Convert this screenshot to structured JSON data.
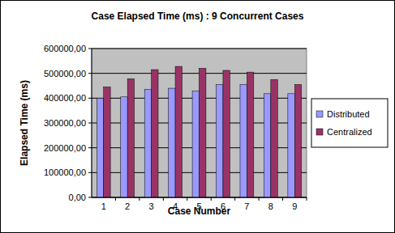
{
  "chart_data": {
    "type": "bar",
    "title": "Case Elapsed Time (ms) : 9 Concurrent Cases",
    "x_label": "Case Number",
    "y_label": "Elapsed Time (ms)",
    "categories": [
      "1",
      "2",
      "3",
      "4",
      "5",
      "6",
      "7",
      "8",
      "9"
    ],
    "series": [
      {
        "name": "Distributed",
        "color": "#9999ff",
        "values": [
          400000,
          405000,
          435000,
          440000,
          428000,
          455000,
          455000,
          418000,
          418000
        ]
      },
      {
        "name": "Centralized",
        "color": "#993366",
        "values": [
          445000,
          478000,
          515000,
          528000,
          520000,
          512000,
          505000,
          475000,
          455000
        ]
      }
    ],
    "ylim": [
      0,
      600000
    ],
    "yticks": [
      {
        "value": 0,
        "label": "0,00"
      },
      {
        "value": 100000,
        "label": "100000,00"
      },
      {
        "value": 200000,
        "label": "200000,00"
      },
      {
        "value": 300000,
        "label": "300000,00"
      },
      {
        "value": 400000,
        "label": "400000,00"
      },
      {
        "value": 500000,
        "label": "500000,00"
      },
      {
        "value": 600000,
        "label": "600000,00"
      }
    ],
    "grid": true,
    "legend": "right"
  }
}
